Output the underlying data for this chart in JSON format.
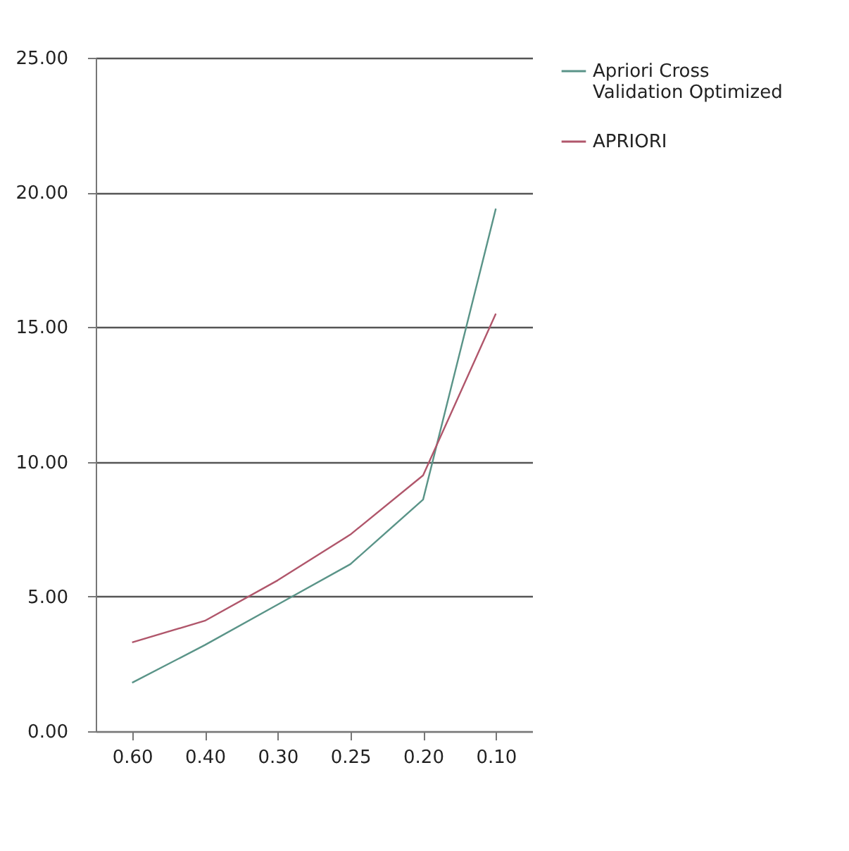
{
  "chart_data": {
    "type": "line",
    "categories": [
      "0.60",
      "0.40",
      "0.30",
      "0.25",
      "0.20",
      "0.10"
    ],
    "series": [
      {
        "name": "Apriori Cross Validation Optimized",
        "color": "#5a9488",
        "values": [
          1.8,
          3.2,
          4.7,
          6.2,
          8.6,
          19.4
        ]
      },
      {
        "name": "APRIORI",
        "color": "#b0566b",
        "values": [
          3.3,
          4.1,
          5.6,
          7.3,
          9.5,
          15.5
        ]
      }
    ],
    "ylim": [
      0,
      25
    ],
    "yticks": [
      {
        "value": 0,
        "label": "0.00"
      },
      {
        "value": 5,
        "label": "5.00"
      },
      {
        "value": 10,
        "label": "10.00"
      },
      {
        "value": 15,
        "label": "15.00"
      },
      {
        "value": 20,
        "label": "20.00"
      },
      {
        "value": 25,
        "label": "25.00"
      }
    ],
    "grid": "y",
    "legend": "right",
    "marker": "none",
    "line_style": "solid"
  }
}
